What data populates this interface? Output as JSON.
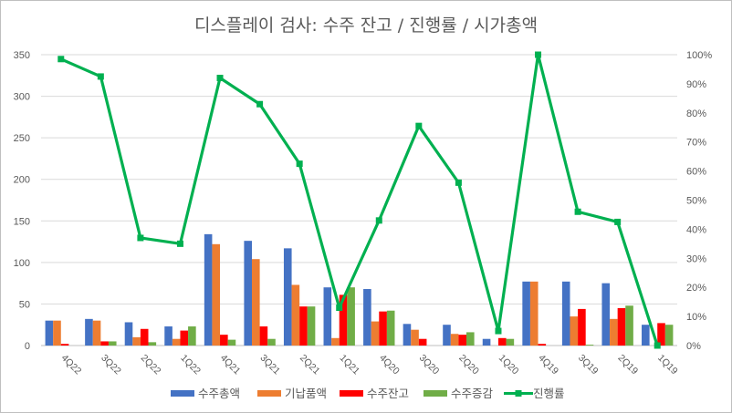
{
  "chart_data": {
    "type": "bar",
    "title": "디스플레이 검사: 수주 잔고 / 진행률 / 시가총액",
    "categories": [
      "4Q22",
      "3Q22",
      "2Q22",
      "1Q22",
      "4Q21",
      "3Q21",
      "2Q21",
      "1Q21",
      "4Q20",
      "3Q20",
      "2Q20",
      "1Q20",
      "4Q19",
      "3Q19",
      "2Q19",
      "1Q19"
    ],
    "ylim": [
      0,
      350
    ],
    "y_ticks": [
      "0",
      "50",
      "100",
      "150",
      "200",
      "250",
      "300",
      "350"
    ],
    "y2lim": [
      0,
      1
    ],
    "y2_ticks": [
      "0%",
      "10%",
      "20%",
      "30%",
      "40%",
      "50%",
      "60%",
      "70%",
      "80%",
      "90%",
      "100%"
    ],
    "grid": true,
    "legend_position": "bottom",
    "series": [
      {
        "name": "수주총액",
        "type": "bar",
        "axis": "left",
        "color": "#4472c4",
        "values": [
          30,
          32,
          28,
          23,
          134,
          126,
          117,
          70,
          68,
          26,
          25,
          8,
          77,
          77,
          75,
          25
        ]
      },
      {
        "name": "기납품액",
        "type": "bar",
        "axis": "left",
        "color": "#ed7d31",
        "values": [
          30,
          30,
          10,
          8,
          122,
          104,
          73,
          9,
          29,
          19,
          14,
          0,
          77,
          35,
          32,
          0
        ]
      },
      {
        "name": "수주잔고",
        "type": "bar",
        "axis": "left",
        "color": "#ff0000",
        "values": [
          2,
          5,
          20,
          18,
          13,
          23,
          47,
          61,
          41,
          8,
          13,
          9,
          2,
          44,
          45,
          27
        ]
      },
      {
        "name": "수주증감",
        "type": "bar",
        "axis": "left",
        "color": "#70ad47",
        "values": [
          0,
          5,
          4,
          23,
          7,
          8,
          47,
          70,
          42,
          0,
          16,
          8,
          0,
          1,
          48,
          25
        ]
      },
      {
        "name": "진행률",
        "type": "line",
        "axis": "right",
        "color": "#00b050",
        "values": [
          0.985,
          0.925,
          0.37,
          0.35,
          0.92,
          0.83,
          0.625,
          0.13,
          0.43,
          0.755,
          0.56,
          0.05,
          1.0,
          0.46,
          0.425,
          0.0
        ]
      }
    ]
  }
}
